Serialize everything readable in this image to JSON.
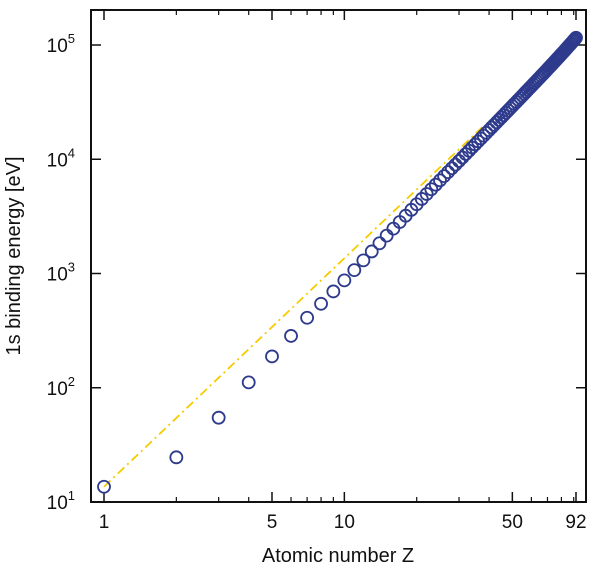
{
  "chart_data": {
    "type": "scatter",
    "title": "",
    "xlabel": "Atomic number Z",
    "ylabel": "1s binding energy [eV]",
    "xscale": "log",
    "yscale": "log",
    "xlim": [
      1,
      92
    ],
    "ylim": [
      10,
      200000
    ],
    "x_ticks": [
      {
        "value": 1,
        "label": "1"
      },
      {
        "value": 5,
        "label": "5"
      },
      {
        "value": 10,
        "label": "10"
      },
      {
        "value": 50,
        "label": "50"
      },
      {
        "value": 92,
        "label": "92"
      }
    ],
    "y_ticks": [
      {
        "value": 10,
        "base": "10",
        "exp": "1"
      },
      {
        "value": 100,
        "base": "10",
        "exp": "2"
      },
      {
        "value": 1000,
        "base": "10",
        "exp": "3"
      },
      {
        "value": 10000,
        "base": "10",
        "exp": "4"
      },
      {
        "value": 100000,
        "base": "10",
        "exp": "5"
      }
    ],
    "grid": false,
    "series": [
      {
        "kind": "markers",
        "marker": "open-circle",
        "color": "#2E3A8C",
        "x": [
          1,
          2,
          3,
          4,
          5,
          6,
          7,
          8,
          9,
          10,
          11,
          12,
          13,
          14,
          15,
          16,
          17,
          18,
          19,
          20,
          21,
          22,
          23,
          24,
          25,
          26,
          27,
          28,
          29,
          30,
          31,
          32,
          33,
          34,
          35,
          36,
          37,
          38,
          39,
          40,
          41,
          42,
          43,
          44,
          45,
          46,
          47,
          48,
          49,
          50,
          51,
          52,
          53,
          54,
          55,
          56,
          57,
          58,
          59,
          60,
          61,
          62,
          63,
          64,
          65,
          66,
          67,
          68,
          69,
          70,
          71,
          72,
          73,
          74,
          75,
          76,
          77,
          78,
          79,
          80,
          81,
          82,
          83,
          84,
          85,
          86,
          87,
          88,
          89,
          90,
          91,
          92
        ],
        "y": [
          13.6,
          24.6,
          54.7,
          111.5,
          188,
          284.2,
          409.9,
          543.1,
          696.7,
          870.2,
          1070.8,
          1303,
          1559.6,
          1839,
          2145.5,
          2472,
          2822.4,
          3205.9,
          3608.4,
          4038.5,
          4492,
          4966,
          5465,
          5989,
          6539,
          7112,
          7709,
          8333,
          8979,
          9659,
          10367,
          11103,
          11867,
          12658,
          13474,
          14326,
          15200,
          16105,
          17038,
          17998,
          18986,
          20000,
          21044,
          22117,
          23220,
          24350,
          25514,
          26711,
          27940,
          29200,
          30491,
          31814,
          33169,
          34561,
          35985,
          37441,
          38925,
          40443,
          41991,
          43569,
          45184,
          46834,
          48519,
          50239,
          51996,
          53789,
          55618,
          57486,
          59390,
          61332,
          63314,
          65351,
          67416,
          69525,
          71676,
          73871,
          76111,
          78395,
          80725,
          83102,
          85530,
          88005,
          90526,
          93105,
          95730,
          98404,
          101137,
          103922,
          106755,
          109651,
          112601,
          115606
        ]
      },
      {
        "kind": "line",
        "style": "dash-dot",
        "color": "#F5CC00",
        "x": [
          1,
          38
        ],
        "y": [
          13.6,
          19638
        ]
      }
    ]
  }
}
